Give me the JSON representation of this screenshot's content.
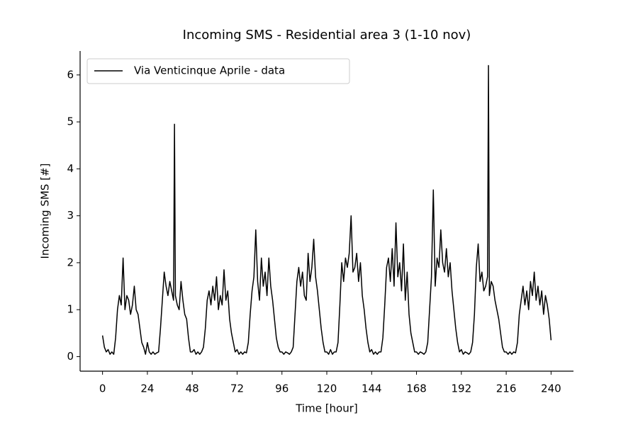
{
  "chart_data": {
    "type": "line",
    "title": "Incoming SMS - Residential area 3 (1-10 nov)",
    "xlabel": "Time [hour]",
    "ylabel": "Incoming SMS [#]",
    "legend": "upper left",
    "grid": false,
    "xlim": [
      -12,
      252
    ],
    "ylim": [
      -0.31,
      6.51
    ],
    "xticks": [
      0,
      24,
      48,
      72,
      96,
      120,
      144,
      168,
      192,
      216,
      240
    ],
    "yticks": [
      0,
      1,
      2,
      3,
      4,
      5,
      6
    ],
    "x": [
      0,
      1,
      2,
      3,
      4,
      5,
      6,
      7,
      8,
      9,
      10,
      11,
      12,
      13,
      14,
      15,
      16,
      17,
      18,
      19,
      20,
      21,
      22,
      23,
      24,
      25,
      26,
      27,
      28,
      29,
      30,
      31,
      32,
      33,
      34,
      35,
      36,
      37,
      38,
      38.5,
      39,
      40,
      41,
      42,
      43,
      44,
      45,
      46,
      47,
      48,
      49,
      50,
      51,
      52,
      53,
      54,
      55,
      56,
      57,
      58,
      59,
      60,
      61,
      62,
      63,
      64,
      65,
      66,
      67,
      68,
      69,
      70,
      71,
      72,
      73,
      74,
      75,
      76,
      77,
      78,
      79,
      80,
      81,
      82,
      83,
      84,
      85,
      86,
      87,
      88,
      89,
      90,
      91,
      92,
      93,
      94,
      95,
      96,
      97,
      98,
      99,
      100,
      101,
      102,
      103,
      104,
      105,
      106,
      107,
      108,
      109,
      110,
      111,
      112,
      113,
      114,
      115,
      116,
      117,
      118,
      119,
      120,
      121,
      122,
      123,
      124,
      125,
      126,
      127,
      128,
      129,
      130,
      131,
      132,
      133,
      134,
      135,
      136,
      137,
      138,
      139,
      140,
      141,
      142,
      143,
      144,
      145,
      146,
      147,
      148,
      149,
      150,
      151,
      152,
      153,
      154,
      155,
      156,
      157,
      158,
      159,
      160,
      161,
      162,
      163,
      164,
      165,
      166,
      167,
      168,
      169,
      170,
      171,
      172,
      173,
      174,
      175,
      176,
      177,
      178,
      179,
      180,
      181,
      182,
      183,
      184,
      185,
      186,
      187,
      188,
      189,
      190,
      191,
      192,
      193,
      194,
      195,
      196,
      197,
      198,
      199,
      200,
      201,
      202,
      203,
      204,
      205,
      206,
      206.5,
      207,
      208,
      209,
      210,
      211,
      212,
      213,
      214,
      215,
      216,
      217,
      218,
      219,
      220,
      221,
      222,
      223,
      224,
      225,
      226,
      227,
      228,
      229,
      230,
      231,
      232,
      233,
      234,
      235,
      236,
      237,
      238,
      239,
      240
    ],
    "series": [
      {
        "name": "Via Venticinque Aprile - data",
        "color": "#000000",
        "values": [
          0.45,
          0.2,
          0.1,
          0.15,
          0.05,
          0.1,
          0.05,
          0.4,
          1.0,
          1.3,
          1.1,
          2.1,
          1.0,
          1.3,
          1.2,
          0.9,
          1.1,
          1.5,
          1.0,
          0.9,
          0.6,
          0.3,
          0.2,
          0.05,
          0.3,
          0.1,
          0.05,
          0.1,
          0.05,
          0.08,
          0.1,
          0.6,
          1.2,
          1.8,
          1.5,
          1.3,
          1.6,
          1.4,
          1.2,
          4.95,
          1.3,
          1.1,
          1.0,
          1.6,
          1.2,
          0.9,
          0.8,
          0.4,
          0.1,
          0.1,
          0.15,
          0.05,
          0.1,
          0.05,
          0.1,
          0.2,
          0.6,
          1.2,
          1.4,
          1.1,
          1.5,
          1.2,
          1.7,
          1.0,
          1.3,
          1.1,
          1.85,
          1.2,
          1.4,
          0.8,
          0.5,
          0.3,
          0.1,
          0.15,
          0.05,
          0.1,
          0.05,
          0.1,
          0.08,
          0.3,
          0.9,
          1.4,
          1.7,
          2.7,
          1.6,
          1.2,
          2.1,
          1.5,
          1.8,
          1.3,
          2.1,
          1.5,
          1.2,
          0.8,
          0.4,
          0.2,
          0.1,
          0.1,
          0.05,
          0.1,
          0.08,
          0.05,
          0.1,
          0.2,
          0.9,
          1.6,
          1.9,
          1.5,
          1.8,
          1.3,
          1.2,
          2.2,
          1.6,
          1.9,
          2.5,
          1.7,
          1.4,
          1.0,
          0.6,
          0.3,
          0.1,
          0.1,
          0.05,
          0.15,
          0.05,
          0.1,
          0.1,
          0.3,
          1.1,
          2.0,
          1.6,
          2.1,
          1.9,
          2.2,
          3.0,
          1.8,
          1.9,
          2.2,
          1.6,
          2.0,
          1.3,
          1.0,
          0.6,
          0.3,
          0.1,
          0.15,
          0.05,
          0.1,
          0.05,
          0.1,
          0.1,
          0.4,
          1.1,
          1.9,
          2.1,
          1.6,
          2.3,
          1.5,
          2.85,
          1.7,
          2.0,
          1.4,
          2.4,
          1.2,
          1.8,
          0.9,
          0.5,
          0.3,
          0.1,
          0.1,
          0.05,
          0.1,
          0.08,
          0.05,
          0.1,
          0.3,
          1.0,
          1.7,
          3.55,
          1.5,
          2.1,
          1.9,
          2.7,
          2.0,
          1.8,
          2.3,
          1.7,
          2.0,
          1.4,
          1.0,
          0.6,
          0.3,
          0.1,
          0.15,
          0.05,
          0.1,
          0.08,
          0.05,
          0.1,
          0.3,
          0.9,
          1.9,
          2.4,
          1.6,
          1.8,
          1.4,
          1.5,
          1.7,
          6.2,
          1.3,
          1.6,
          1.5,
          1.2,
          1.0,
          0.8,
          0.5,
          0.2,
          0.1,
          0.1,
          0.05,
          0.1,
          0.05,
          0.1,
          0.08,
          0.3,
          0.9,
          1.2,
          1.5,
          1.1,
          1.4,
          1.0,
          1.6,
          1.3,
          1.8,
          1.2,
          1.5,
          1.1,
          1.4,
          0.9,
          1.3,
          1.1,
          0.8,
          0.35
        ]
      }
    ]
  }
}
